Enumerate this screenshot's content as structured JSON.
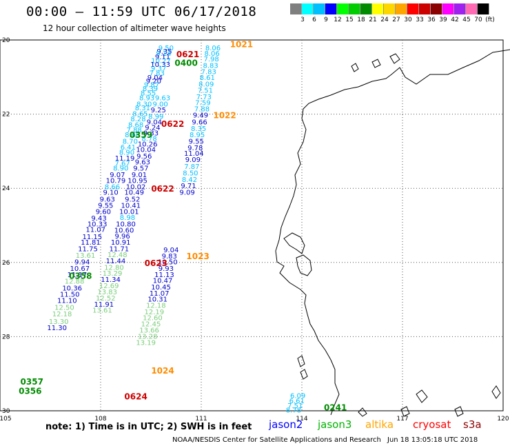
{
  "title": "00:00 – 11:59 UTC 06/17/2018",
  "subtitle": "12 hour collection of altimeter wave heights",
  "scale": {
    "colors": [
      "#7f7f7f",
      "#00ffff",
      "#00bfff",
      "#0000ff",
      "#00ff00",
      "#00cd00",
      "#008b00",
      "#ffff00",
      "#ffd700",
      "#ffa500",
      "#ff0000",
      "#cd0000",
      "#8b0000",
      "#ff00ff",
      "#a020f0",
      "#ff69b4",
      "#000000"
    ],
    "labels": [
      "3",
      "6",
      "9",
      "12",
      "15",
      "18",
      "21",
      "24",
      "27",
      "30",
      "33",
      "36",
      "39",
      "42",
      "45",
      "70",
      "(ft)"
    ]
  },
  "axes": {
    "lat_ticks": [
      "20",
      "22",
      "24",
      "26",
      "28",
      "30"
    ],
    "lon_ticks": [
      "105",
      "108",
      "111",
      "114",
      "117",
      "120"
    ]
  },
  "tracks": [
    {
      "satellite": "s3a-west",
      "color": "#0000cd",
      "points": [
        [
          109.95,
          20.2,
          "9.50",
          "#00bfff"
        ],
        [
          109.9,
          20.3,
          "9.35",
          "#0000cd"
        ],
        [
          109.88,
          20.35,
          "9.14",
          "#00bfff"
        ],
        [
          109.85,
          20.45,
          "9.11",
          "#0000cd"
        ],
        [
          109.8,
          20.55,
          "10.27",
          "#00bfff"
        ],
        [
          109.78,
          20.65,
          "10.33",
          "#0000cd"
        ],
        [
          109.73,
          20.75,
          "9.37",
          "#00bfff"
        ],
        [
          109.68,
          20.88,
          "7.83",
          "#00bfff"
        ],
        [
          109.62,
          21.0,
          "9.04",
          "#0000cd"
        ],
        [
          109.58,
          21.1,
          "9.20",
          "#0000cd"
        ],
        [
          109.52,
          21.2,
          "9.87",
          "#00bfff"
        ],
        [
          109.48,
          21.3,
          "8.39",
          "#00bfff"
        ],
        [
          109.42,
          21.42,
          "8.55",
          "#00bfff"
        ],
        [
          109.38,
          21.55,
          "8.93",
          "#00bfff"
        ],
        [
          109.3,
          21.72,
          "8.30",
          "#00bfff"
        ],
        [
          109.25,
          21.82,
          "8.31",
          "#00bfff"
        ],
        [
          109.18,
          21.98,
          "8.65",
          "#00bfff"
        ],
        [
          109.12,
          22.12,
          "8.28",
          "#00bfff"
        ],
        [
          109.05,
          22.28,
          "8.68",
          "#00bfff"
        ],
        [
          109.0,
          22.42,
          "7.88",
          "#00bfff"
        ],
        [
          108.95,
          22.55,
          "8.66",
          "#00bfff"
        ],
        [
          108.88,
          22.72,
          "8.70",
          "#00bfff"
        ],
        [
          108.82,
          22.88,
          "6.41",
          "#00bfff"
        ],
        [
          108.78,
          23.02,
          "8.90",
          "#00bfff"
        ],
        [
          108.72,
          23.18,
          "11.19",
          "#0000cd"
        ],
        [
          108.65,
          23.32,
          "7.67",
          "#00bfff"
        ],
        [
          108.6,
          23.45,
          "8.90",
          "#00bfff"
        ],
        [
          108.5,
          23.62,
          "9.07",
          "#0000cd"
        ],
        [
          108.45,
          23.78,
          "10.79",
          "#0000cd"
        ],
        [
          108.35,
          23.95,
          "8.66",
          "#00bfff"
        ],
        [
          108.3,
          24.1,
          "9.10",
          "#0000cd"
        ],
        [
          108.2,
          24.28,
          "9.63",
          "#0000cd"
        ],
        [
          108.15,
          24.45,
          "9.55",
          "#0000cd"
        ],
        [
          108.08,
          24.62,
          "9.60",
          "#0000cd"
        ],
        [
          107.95,
          24.8,
          "9.43",
          "#0000cd"
        ],
        [
          107.9,
          24.95,
          "10.33",
          "#0000cd"
        ],
        [
          107.85,
          25.1,
          "11.07",
          "#0000cd"
        ],
        [
          107.75,
          25.3,
          "11.15",
          "#0000cd"
        ],
        [
          107.7,
          25.45,
          "11.81",
          "#0000cd"
        ],
        [
          107.62,
          25.62,
          "11.75",
          "#0000cd"
        ],
        [
          107.55,
          25.8,
          "13.61",
          "#7ccd7c"
        ],
        [
          107.45,
          25.98,
          "9.94",
          "#0000cd"
        ],
        [
          107.38,
          26.15,
          "10.67",
          "#0000cd"
        ],
        [
          107.3,
          26.32,
          "11.17",
          "#0000cd"
        ],
        [
          107.22,
          26.5,
          "12.88",
          "#7ccd7c"
        ],
        [
          107.15,
          26.68,
          "10.36",
          "#0000cd"
        ],
        [
          107.08,
          26.85,
          "11.50",
          "#0000cd"
        ],
        [
          107.0,
          27.02,
          "11.10",
          "#0000cd"
        ],
        [
          106.92,
          27.2,
          "12.50",
          "#7ccd7c"
        ],
        [
          106.85,
          27.38,
          "12.18",
          "#7ccd7c"
        ],
        [
          106.75,
          27.58,
          "13.30",
          "#7ccd7c"
        ],
        [
          106.7,
          27.75,
          "11.30",
          "#0000cd"
        ]
      ]
    },
    {
      "satellite": "s3a-mid",
      "color": "#0000cd",
      "points": [
        [
          110.3,
          20.2,
          "",
          "#00bfff"
        ],
        [
          110.15,
          20.45,
          "",
          "#00bfff"
        ],
        [
          109.85,
          21.55,
          "9.63",
          "#00bfff"
        ],
        [
          109.78,
          21.72,
          "9.00",
          "#00bfff"
        ],
        [
          109.72,
          21.88,
          "9.25",
          "#0000cd"
        ],
        [
          109.65,
          22.05,
          "8.99",
          "#00bfff"
        ],
        [
          109.6,
          22.2,
          "9.04",
          "#0000cd"
        ],
        [
          109.55,
          22.35,
          "9.24",
          "#0000cd"
        ],
        [
          109.5,
          22.5,
          "9.33",
          "#0000cd"
        ],
        [
          109.45,
          22.65,
          "8.78",
          "#00bfff"
        ],
        [
          109.4,
          22.8,
          "10.26",
          "#0000cd"
        ],
        [
          109.35,
          22.95,
          "10.04",
          "#0000cd"
        ],
        [
          109.3,
          23.12,
          "9.56",
          "#0000cd"
        ],
        [
          109.25,
          23.28,
          "9.63",
          "#0000cd"
        ],
        [
          109.2,
          23.45,
          "9.57",
          "#0000cd"
        ],
        [
          109.15,
          23.62,
          "9.01",
          "#0000cd"
        ],
        [
          109.1,
          23.78,
          "10.95",
          "#0000cd"
        ],
        [
          109.05,
          23.95,
          "10.02",
          "#0000cd"
        ],
        [
          109.0,
          24.1,
          "10.49",
          "#0000cd"
        ],
        [
          108.95,
          24.28,
          "9.52",
          "#0000cd"
        ],
        [
          108.9,
          24.45,
          "10.41",
          "#0000cd"
        ],
        [
          108.85,
          24.62,
          "10.01",
          "#0000cd"
        ],
        [
          108.8,
          24.78,
          "8.98",
          "#00bfff"
        ],
        [
          108.75,
          24.95,
          "10.80",
          "#0000cd"
        ],
        [
          108.7,
          25.12,
          "10.60",
          "#0000cd"
        ],
        [
          108.65,
          25.28,
          "9.96",
          "#0000cd"
        ],
        [
          108.6,
          25.45,
          "10.91",
          "#0000cd"
        ],
        [
          108.55,
          25.62,
          "11.71",
          "#0000cd"
        ],
        [
          108.5,
          25.78,
          "12.48",
          "#7ccd7c"
        ],
        [
          108.45,
          25.95,
          "11.44",
          "#0000cd"
        ],
        [
          108.4,
          26.12,
          "12.80",
          "#7ccd7c"
        ],
        [
          108.35,
          26.28,
          "13.29",
          "#7ccd7c"
        ],
        [
          108.3,
          26.45,
          "11.34",
          "#0000cd"
        ],
        [
          108.25,
          26.62,
          "12.69",
          "#7ccd7c"
        ],
        [
          108.2,
          26.78,
          "13.83",
          "#7ccd7c"
        ],
        [
          108.15,
          26.95,
          "12.52",
          "#7ccd7c"
        ],
        [
          108.1,
          27.12,
          "11.91",
          "#0000cd"
        ],
        [
          108.05,
          27.28,
          "13.61",
          "#7ccd7c"
        ]
      ]
    },
    {
      "satellite": "s3a-east",
      "color": "#0000cd",
      "points": [
        [
          110.1,
          25.65,
          "9.04",
          "#0000cd"
        ],
        [
          110.05,
          25.82,
          "9.83",
          "#0000cd"
        ],
        [
          110.0,
          25.98,
          "10.50",
          "#0000cd"
        ],
        [
          109.95,
          26.15,
          "9.93",
          "#0000cd"
        ],
        [
          109.9,
          26.32,
          "11.13",
          "#0000cd"
        ],
        [
          109.85,
          26.48,
          "10.47",
          "#0000cd"
        ],
        [
          109.8,
          26.65,
          "10.45",
          "#0000cd"
        ],
        [
          109.75,
          26.82,
          "11.07",
          "#0000cd"
        ],
        [
          109.7,
          26.98,
          "10.31",
          "#0000cd"
        ],
        [
          109.65,
          27.15,
          "12.18",
          "#7ccd7c"
        ],
        [
          109.6,
          27.32,
          "12.19",
          "#7ccd7c"
        ],
        [
          109.55,
          27.48,
          "12.60",
          "#7ccd7c"
        ],
        [
          109.5,
          27.65,
          "12.45",
          "#7ccd7c"
        ],
        [
          109.45,
          27.82,
          "13.66",
          "#7ccd7c"
        ],
        [
          109.4,
          27.98,
          "13.28",
          "#7ccd7c"
        ],
        [
          109.35,
          28.15,
          "13.19",
          "#7ccd7c"
        ]
      ]
    },
    {
      "satellite": "altika",
      "color": "#00bfff",
      "points": [
        [
          111.35,
          20.2,
          "8.06",
          "#00bfff"
        ],
        [
          111.32,
          20.35,
          "8.06",
          "#00bfff"
        ],
        [
          111.3,
          20.5,
          "7.98",
          "#00bfff"
        ],
        [
          111.28,
          20.68,
          "8.83",
          "#00bfff"
        ],
        [
          111.22,
          20.85,
          "7.83",
          "#00bfff"
        ],
        [
          111.18,
          21.0,
          "8.61",
          "#00bfff"
        ],
        [
          111.15,
          21.18,
          "8.09",
          "#00bfff"
        ],
        [
          111.12,
          21.35,
          "7.51",
          "#00bfff"
        ],
        [
          111.08,
          21.52,
          "7.73",
          "#00bfff"
        ],
        [
          111.05,
          21.68,
          "7.59",
          "#00bfff"
        ],
        [
          111.02,
          21.85,
          "7.88",
          "#00bfff"
        ],
        [
          110.98,
          22.02,
          "9.49",
          "#0000cd"
        ],
        [
          110.95,
          22.2,
          "9.66",
          "#0000cd"
        ],
        [
          110.92,
          22.38,
          "8.35",
          "#00bfff"
        ],
        [
          110.88,
          22.55,
          "8.95",
          "#00bfff"
        ],
        [
          110.85,
          22.72,
          "9.55",
          "#0000cd"
        ],
        [
          110.82,
          22.9,
          "9.78",
          "#0000cd"
        ],
        [
          110.78,
          23.05,
          "11.04",
          "#0000cd"
        ],
        [
          110.75,
          23.22,
          "9.09",
          "#0000cd"
        ],
        [
          110.72,
          23.4,
          "7.87",
          "#00bfff"
        ],
        [
          110.68,
          23.58,
          "8.50",
          "#00bfff"
        ],
        [
          110.65,
          23.75,
          "8.42",
          "#00bfff"
        ],
        [
          110.62,
          23.92,
          "9.71",
          "#0000cd"
        ],
        [
          110.58,
          24.1,
          "9.09",
          "#0000cd"
        ]
      ]
    },
    {
      "satellite": "east-coast",
      "color": "#00bfff",
      "points": [
        [
          113.88,
          29.58,
          "6.09",
          "#00bfff"
        ],
        [
          113.85,
          29.72,
          "6.61",
          "#00bfff"
        ],
        [
          113.8,
          29.85,
          "7.51",
          "#00bfff"
        ],
        [
          113.75,
          29.97,
          "8.78",
          "#00bfff"
        ]
      ]
    }
  ],
  "time_labels": [
    {
      "text": "0621",
      "color": "#cd0000",
      "lon": 110.6,
      "lat": 20.37
    },
    {
      "text": "0400",
      "color": "#008b00",
      "lon": 110.55,
      "lat": 20.6
    },
    {
      "text": "1021",
      "color": "#ff8c00",
      "lon": 112.2,
      "lat": 20.1
    },
    {
      "text": "1022",
      "color": "#ff8c00",
      "lon": 111.7,
      "lat": 22.02
    },
    {
      "text": "0622",
      "color": "#cd0000",
      "lon": 110.15,
      "lat": 22.25
    },
    {
      "text": "0359",
      "color": "#008b00",
      "lon": 109.2,
      "lat": 22.55
    },
    {
      "text": "0622",
      "color": "#cd0000",
      "lon": 109.85,
      "lat": 24.0
    },
    {
      "text": "1023",
      "color": "#ff8c00",
      "lon": 110.9,
      "lat": 25.82
    },
    {
      "text": "0623",
      "color": "#cd0000",
      "lon": 109.65,
      "lat": 26.0
    },
    {
      "text": "0358",
      "color": "#008b00",
      "lon": 107.4,
      "lat": 26.35
    },
    {
      "text": "1024",
      "color": "#ff8c00",
      "lon": 109.85,
      "lat": 28.9
    },
    {
      "text": "0357",
      "color": "#008b00",
      "lon": 105.95,
      "lat": 29.2
    },
    {
      "text": "0356",
      "color": "#008b00",
      "lon": 105.9,
      "lat": 29.45
    },
    {
      "text": "0624",
      "color": "#cd0000",
      "lon": 109.05,
      "lat": 29.6
    },
    {
      "text": "0241",
      "color": "#008b00",
      "lon": 115.0,
      "lat": 29.9
    }
  ],
  "footer": {
    "note": "note: 1) Time is in UTC; 2) SWH is in feet",
    "satellites": [
      {
        "name": "jason2",
        "color": "#0000ff"
      },
      {
        "name": "jason3",
        "color": "#00b300"
      },
      {
        "name": "altika",
        "color": "#ffa500"
      },
      {
        "name": "cryosat",
        "color": "#ff0000"
      },
      {
        "name": "s3a",
        "color": "#8b0000"
      }
    ],
    "credit": "NOAA/NESDIS Center for Satellite Applications and Research",
    "stamp": "Jun 18 13:05:18 UTC 2018"
  }
}
